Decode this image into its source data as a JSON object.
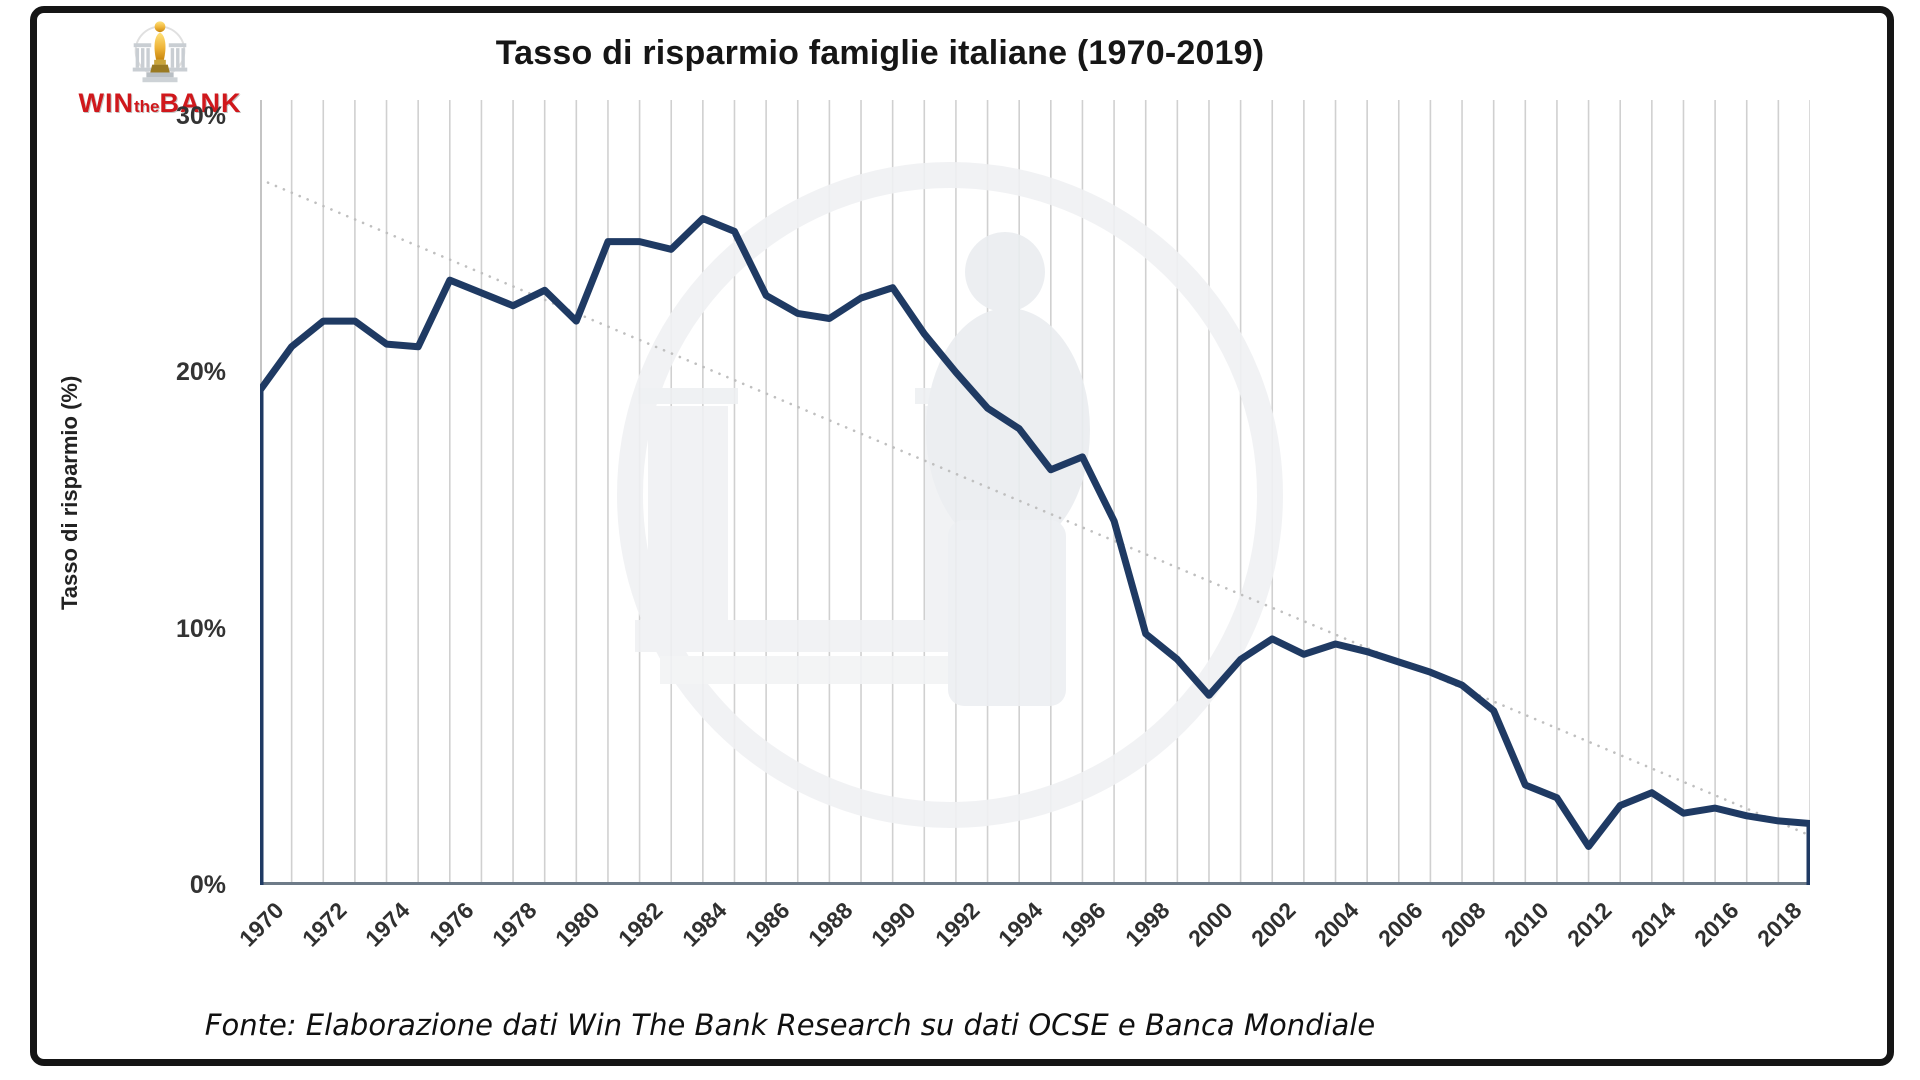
{
  "logo": {
    "win": "WIN",
    "the": "the",
    "bank": "BANK"
  },
  "header": {
    "title": "Tasso di risparmio famiglie italiane (1970-2019)"
  },
  "footer": {
    "source": "Fonte: Elaborazione dati Win The Bank Research su dati OCSE e Banca Mondiale"
  },
  "chart_data": {
    "type": "line",
    "title": "Tasso di risparmio famiglie italiane (1970-2019)",
    "xlabel": "",
    "ylabel": "Tasso di risparmio (%)",
    "ylim": [
      0,
      30
    ],
    "y_ticks": [
      {
        "label": "30%",
        "value": 30
      },
      {
        "label": "20%",
        "value": 20
      },
      {
        "label": "10%",
        "value": 10
      },
      {
        "label": "0%",
        "value": 0
      }
    ],
    "x_tick_step": 2,
    "grid": "vertical-per-year",
    "legend_position": "none",
    "series": [
      {
        "name": "Tasso di risparmio famiglie italiane",
        "color": "#1f3a63",
        "x": [
          1970,
          1971,
          1972,
          1973,
          1974,
          1975,
          1976,
          1977,
          1978,
          1979,
          1980,
          1981,
          1982,
          1983,
          1984,
          1985,
          1986,
          1987,
          1988,
          1989,
          1990,
          1991,
          1992,
          1993,
          1994,
          1995,
          1996,
          1997,
          1998,
          1999,
          2000,
          2001,
          2002,
          2003,
          2004,
          2005,
          2006,
          2007,
          2008,
          2009,
          2010,
          2011,
          2012,
          2013,
          2014,
          2015,
          2016,
          2017,
          2018,
          2019
        ],
        "values": [
          19.3,
          21.0,
          22.0,
          22.0,
          21.1,
          21.0,
          23.6,
          23.1,
          22.6,
          23.2,
          22.0,
          25.1,
          25.1,
          24.8,
          26.0,
          25.5,
          23.0,
          22.3,
          22.1,
          22.9,
          23.3,
          21.5,
          20.0,
          18.6,
          17.8,
          16.2,
          16.7,
          14.2,
          9.8,
          8.8,
          7.4,
          8.8,
          9.6,
          9.0,
          9.4,
          9.1,
          8.7,
          8.3,
          7.8,
          6.8,
          3.9,
          3.4,
          1.5,
          3.1,
          3.6,
          2.8,
          3.0,
          2.7,
          2.5,
          2.4
        ]
      }
    ],
    "trendline": {
      "type": "linear",
      "style": "dotted",
      "color": "#bfbfbf",
      "start_value": 27.4,
      "end_value": 2.0
    },
    "watermark": "win-the-bank-statue-watermark"
  },
  "styles": {
    "line_color": "#1f3a63",
    "grid_color": "#d0d0d0",
    "bottom_axis_color": "#6e7b88",
    "left_axis_color": "#c4c4c4",
    "brand_red": "#d0181c",
    "frame_color": "#151515"
  }
}
